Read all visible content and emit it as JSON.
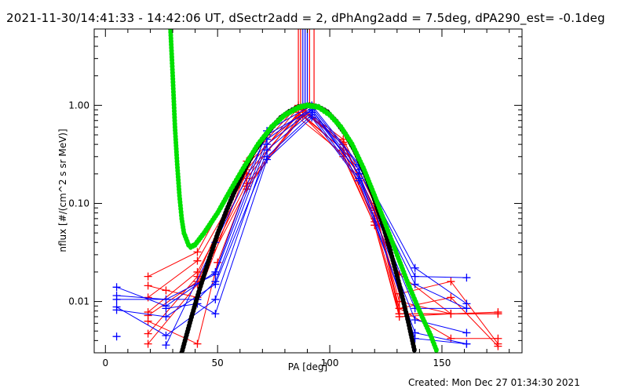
{
  "chart_data": {
    "type": "line",
    "title": "2021-11-30/14:41:33 - 14:42:06 UT, dSectr2add = 2, dPhAng2add = 7.5deg, dPA290_est= -0.1deg",
    "xlabel": "PA [deg]",
    "ylabel": "nflux [#/(cm^2 s sr MeV)]",
    "xlim": [
      -5,
      185.7
    ],
    "ylim": [
      0.003,
      6
    ],
    "yscale": "log",
    "x_ticks": [
      0,
      50,
      100,
      150
    ],
    "x_tick_labels": [
      "0",
      "50",
      "100",
      "150"
    ],
    "y_ticks": [
      1.0,
      0.1,
      0.01
    ],
    "y_tick_labels": [
      "1.00",
      "0.10",
      "0.01"
    ],
    "footer": "Created: Mon Dec 27 01:34:30 2021",
    "colors": {
      "red": "#ff0000",
      "blue": "#0000ff",
      "black": "#000000",
      "green": "#00e000"
    },
    "series": [
      {
        "name": "red-1",
        "color": "red",
        "points": [
          [
            19,
            0.018
          ],
          [
            41,
            0.032
          ],
          [
            63,
            0.27
          ],
          [
            86,
            1.0
          ],
          [
            106,
            0.45
          ],
          [
            120,
            0.1
          ],
          [
            131,
            0.0075
          ],
          [
            154,
            0.0075
          ],
          [
            175,
            0.0075
          ]
        ]
      },
      {
        "name": "red-2",
        "color": "red",
        "points": [
          [
            19,
            0.0145
          ],
          [
            27,
            0.013
          ],
          [
            41,
            0.011
          ],
          [
            63,
            0.22
          ],
          [
            86,
            0.95
          ],
          [
            106,
            0.4
          ],
          [
            120,
            0.09
          ],
          [
            131,
            0.0085
          ],
          [
            154,
            0.011
          ],
          [
            175,
            0.0035
          ]
        ]
      },
      {
        "name": "red-3",
        "color": "red",
        "points": [
          [
            19,
            0.011
          ],
          [
            41,
            0.026
          ],
          [
            63,
            0.2
          ],
          [
            88,
            0.9
          ],
          [
            106,
            0.4
          ],
          [
            120,
            0.08
          ],
          [
            131,
            0.012
          ],
          [
            154,
            0.016
          ],
          [
            175,
            0.0037
          ]
        ]
      },
      {
        "name": "red-4",
        "color": "red",
        "points": [
          [
            19,
            0.0078
          ],
          [
            41,
            0.02
          ],
          [
            63,
            0.18
          ],
          [
            86,
            0.85
          ],
          [
            106,
            0.35
          ],
          [
            120,
            0.07
          ],
          [
            131,
            0.019
          ],
          [
            154,
            0.0075
          ],
          [
            175,
            0.0078
          ]
        ]
      },
      {
        "name": "red-5",
        "color": "red",
        "points": [
          [
            19,
            0.0072
          ],
          [
            41,
            0.016
          ],
          [
            63,
            0.16
          ],
          [
            88,
            0.8
          ],
          [
            106,
            0.35
          ],
          [
            120,
            0.065
          ],
          [
            131,
            0.0085
          ],
          [
            154,
            0.0042
          ],
          [
            175,
            0.0042
          ]
        ]
      },
      {
        "name": "red-6",
        "color": "red",
        "points": [
          [
            19,
            0.0063
          ],
          [
            41,
            0.0037
          ],
          [
            50,
            0.025
          ],
          [
            63,
            0.15
          ],
          [
            88,
            0.78
          ],
          [
            106,
            0.3
          ],
          [
            120,
            0.06
          ],
          [
            131,
            0.007
          ],
          [
            154,
            0.0075
          ]
        ]
      },
      {
        "name": "red-7",
        "color": "red",
        "points": [
          [
            19,
            0.0047
          ],
          [
            41,
            0.018
          ],
          [
            63,
            0.25
          ],
          [
            88,
            0.9
          ],
          [
            106,
            0.42
          ],
          [
            120,
            0.085
          ],
          [
            131,
            0.01
          ],
          [
            154,
            0.0075
          ]
        ]
      },
      {
        "name": "red-8",
        "color": "red",
        "points": [
          [
            19,
            0.0037
          ],
          [
            41,
            0.015
          ],
          [
            63,
            0.14
          ],
          [
            86,
            0.75
          ],
          [
            106,
            0.32
          ],
          [
            120,
            0.06
          ],
          [
            131,
            0.0075
          ],
          [
            175,
            0.0075
          ]
        ]
      },
      {
        "name": "blue-1",
        "color": "blue",
        "points": [
          [
            5,
            0.014
          ],
          [
            27,
            0.009
          ],
          [
            49,
            0.02
          ],
          [
            72,
            0.55
          ],
          [
            92,
            1.0
          ],
          [
            113,
            0.25
          ],
          [
            138,
            0.022
          ],
          [
            161,
            0.0095
          ]
        ]
      },
      {
        "name": "blue-2",
        "color": "blue",
        "points": [
          [
            5,
            0.0115
          ],
          [
            27,
            0.0105
          ],
          [
            49,
            0.019
          ],
          [
            72,
            0.45
          ],
          [
            92,
            0.95
          ],
          [
            113,
            0.24
          ],
          [
            138,
            0.018
          ],
          [
            161,
            0.0175
          ]
        ]
      },
      {
        "name": "blue-3",
        "color": "blue",
        "points": [
          [
            5,
            0.0105
          ],
          [
            41,
            0.0105
          ],
          [
            49,
            0.016
          ],
          [
            72,
            0.4
          ],
          [
            92,
            0.9
          ],
          [
            113,
            0.22
          ],
          [
            138,
            0.015
          ],
          [
            161,
            0.0085
          ]
        ]
      },
      {
        "name": "blue-4",
        "color": "blue",
        "points": [
          [
            5,
            0.0088
          ],
          [
            27,
            0.0045
          ],
          [
            49,
            0.0105
          ],
          [
            72,
            0.35
          ],
          [
            92,
            0.85
          ],
          [
            113,
            0.2
          ],
          [
            138,
            0.0085
          ],
          [
            161,
            0.0085
          ]
        ]
      },
      {
        "name": "blue-5",
        "color": "blue",
        "points": [
          [
            5,
            0.0082
          ],
          [
            27,
            0.007
          ],
          [
            49,
            0.015
          ],
          [
            72,
            0.3
          ],
          [
            92,
            0.8
          ],
          [
            113,
            0.18
          ],
          [
            138,
            0.0065
          ],
          [
            161,
            0.0048
          ]
        ]
      },
      {
        "name": "blue-6",
        "color": "blue",
        "points": [
          [
            27,
            0.0085
          ],
          [
            41,
            0.0095
          ],
          [
            49,
            0.0075
          ],
          [
            72,
            0.28
          ],
          [
            92,
            0.75
          ],
          [
            113,
            0.17
          ],
          [
            138,
            0.0048
          ],
          [
            161,
            0.0037
          ]
        ]
      },
      {
        "name": "blue-7",
        "color": "blue",
        "points": [
          [
            27,
            0.0036
          ],
          [
            49,
            0.04
          ],
          [
            72,
            0.5
          ],
          [
            92,
            0.9
          ],
          [
            113,
            0.2
          ],
          [
            138,
            0.0042
          ],
          [
            161,
            0.0037
          ]
        ]
      },
      {
        "name": "blue-8",
        "color": "blue",
        "points": [
          [
            5,
            0.0044
          ]
        ]
      }
    ],
    "vertical_markers": [
      {
        "pa": 86,
        "color": "red"
      },
      {
        "pa": 87,
        "color": "red"
      },
      {
        "pa": 88,
        "color": "blue"
      },
      {
        "pa": 89,
        "color": "blue"
      },
      {
        "pa": 90,
        "color": "blue"
      },
      {
        "pa": 91,
        "color": "red"
      },
      {
        "pa": 93,
        "color": "red"
      }
    ],
    "fit_curves": [
      {
        "name": "black-fit",
        "color": "black",
        "points": [
          [
            34,
            0.003
          ],
          [
            38,
            0.0065
          ],
          [
            42,
            0.0134
          ],
          [
            46,
            0.026
          ],
          [
            50,
            0.049
          ],
          [
            54,
            0.085
          ],
          [
            58,
            0.14
          ],
          [
            62,
            0.22
          ],
          [
            66,
            0.33
          ],
          [
            70,
            0.45
          ],
          [
            74,
            0.59
          ],
          [
            78,
            0.74
          ],
          [
            82,
            0.86
          ],
          [
            86,
            0.96
          ],
          [
            91,
            1.0
          ],
          [
            95,
            0.96
          ],
          [
            99,
            0.85
          ],
          [
            103,
            0.68
          ],
          [
            107,
            0.51
          ],
          [
            111,
            0.35
          ],
          [
            115,
            0.22
          ],
          [
            119,
            0.127
          ],
          [
            123,
            0.068
          ],
          [
            127,
            0.033
          ],
          [
            131,
            0.0149
          ],
          [
            135,
            0.0062
          ],
          [
            138,
            0.003
          ]
        ]
      },
      {
        "name": "green-fit",
        "color": "green",
        "points": [
          [
            29,
            6
          ],
          [
            30,
            2
          ],
          [
            31,
            0.6
          ],
          [
            32,
            0.25
          ],
          [
            33,
            0.12
          ],
          [
            34,
            0.07
          ],
          [
            35,
            0.05
          ],
          [
            37,
            0.038
          ],
          [
            38,
            0.036
          ],
          [
            40,
            0.038
          ],
          [
            44,
            0.05
          ],
          [
            50,
            0.08
          ],
          [
            56,
            0.14
          ],
          [
            62,
            0.24
          ],
          [
            68,
            0.4
          ],
          [
            74,
            0.6
          ],
          [
            80,
            0.8
          ],
          [
            86,
            0.95
          ],
          [
            90,
            1.0
          ],
          [
            95,
            0.96
          ],
          [
            100,
            0.8
          ],
          [
            105,
            0.6
          ],
          [
            110,
            0.4
          ],
          [
            115,
            0.23
          ],
          [
            120,
            0.12
          ],
          [
            125,
            0.06
          ],
          [
            130,
            0.03
          ],
          [
            135,
            0.015
          ],
          [
            140,
            0.008
          ],
          [
            145,
            0.0045
          ],
          [
            148,
            0.003
          ]
        ]
      }
    ]
  }
}
